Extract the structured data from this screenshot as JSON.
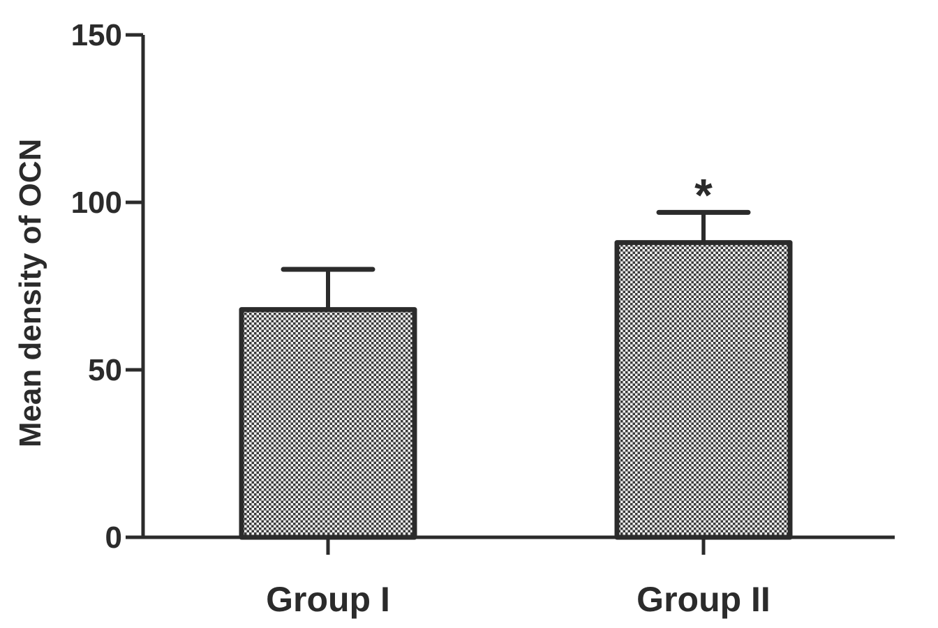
{
  "chart_data": {
    "type": "bar",
    "title": "",
    "xlabel": "",
    "ylabel": "Mean density of OCN",
    "ylim": [
      0,
      150
    ],
    "yticks": [
      0,
      50,
      100,
      150
    ],
    "categories": [
      "Group I",
      "Group II"
    ],
    "values": [
      68,
      88
    ],
    "error_upper": [
      80,
      97
    ],
    "annotations": [
      "",
      "*"
    ],
    "grid": false,
    "legend": "none",
    "colors": {
      "axis": "#2b2b2b",
      "bar_outline": "#2b2b2b",
      "bar_pattern_dark": "#3a3a3a",
      "bar_pattern_light": "#f2f2f2"
    }
  }
}
